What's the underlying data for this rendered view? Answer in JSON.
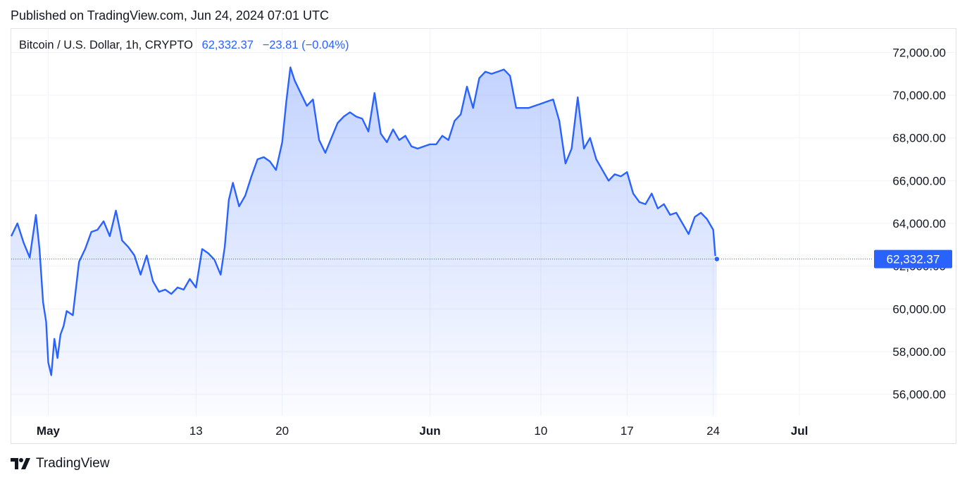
{
  "header": {
    "published": "Published on TradingView.com, Jun 24, 2024 07:01 UTC"
  },
  "legend": {
    "symbol": "Bitcoin / U.S. Dollar, 1h, CRYPTO",
    "price": "62,332.37",
    "change": "−23.81 (−0.04%)"
  },
  "footer": {
    "brand": "TradingView",
    "logo_icon": "tradingview-logo-icon"
  },
  "colors": {
    "line": "#2962ff",
    "label_bg": "#2962ff",
    "grid": "#f0f3fa",
    "text": "#131722"
  },
  "chart_data": {
    "type": "area",
    "symbol": "Bitcoin / U.S. Dollar",
    "interval": "1h",
    "ylim": [
      55000,
      73100
    ],
    "xlim_days": [
      "2024-04-28",
      "2024-07-07"
    ],
    "y_ticks": [
      56000,
      58000,
      60000,
      62000,
      64000,
      66000,
      68000,
      70000,
      72000
    ],
    "y_tick_labels": [
      "56,000.00",
      "58,000.00",
      "60,000.00",
      "62,000.00",
      "64,000.00",
      "66,000.00",
      "68,000.00",
      "70,000.00",
      "72,000.00"
    ],
    "x_ticks": [
      {
        "date": "2024-05-01",
        "label": "May",
        "bold": true
      },
      {
        "date": "2024-05-13",
        "label": "13",
        "bold": false
      },
      {
        "date": "2024-05-20",
        "label": "20",
        "bold": false
      },
      {
        "date": "2024-06-01",
        "label": "Jun",
        "bold": true
      },
      {
        "date": "2024-06-10",
        "label": "10",
        "bold": false
      },
      {
        "date": "2024-06-17",
        "label": "17",
        "bold": false
      },
      {
        "date": "2024-06-24",
        "label": "24",
        "bold": false
      },
      {
        "date": "2024-07-01",
        "label": "Jul",
        "bold": true
      }
    ],
    "last_price": 62332.37,
    "last_price_label": "62,332.37",
    "grid": true,
    "series": [
      {
        "x": [
          "2024-04-28T00:00",
          "2024-04-28T12:00",
          "2024-04-29T00:00",
          "2024-04-29T12:00",
          "2024-04-30T00:00",
          "2024-04-30T07:00",
          "2024-04-30T14:00",
          "2024-04-30T20:00",
          "2024-05-01T00:00",
          "2024-05-01T06:00",
          "2024-05-01T12:00",
          "2024-05-01T18:00",
          "2024-05-02T00:00",
          "2024-05-02T06:00",
          "2024-05-02T12:00",
          "2024-05-02T18:00",
          "2024-05-03T00:00",
          "2024-05-03T12:00",
          "2024-05-04T00:00",
          "2024-05-04T12:00",
          "2024-05-05T00:00",
          "2024-05-05T12:00",
          "2024-05-06T00:00",
          "2024-05-06T12:00",
          "2024-05-07T00:00",
          "2024-05-07T12:00",
          "2024-05-08T00:00",
          "2024-05-08T12:00",
          "2024-05-09T00:00",
          "2024-05-09T12:00",
          "2024-05-10T00:00",
          "2024-05-10T12:00",
          "2024-05-11T00:00",
          "2024-05-11T12:00",
          "2024-05-12T00:00",
          "2024-05-12T12:00",
          "2024-05-13T00:00",
          "2024-05-13T12:00",
          "2024-05-14T00:00",
          "2024-05-14T12:00",
          "2024-05-15T00:00",
          "2024-05-15T08:00",
          "2024-05-15T16:00",
          "2024-05-16T00:00",
          "2024-05-16T12:00",
          "2024-05-17T00:00",
          "2024-05-17T12:00",
          "2024-05-18T00:00",
          "2024-05-18T12:00",
          "2024-05-19T00:00",
          "2024-05-19T12:00",
          "2024-05-20T00:00",
          "2024-05-20T08:00",
          "2024-05-20T16:00",
          "2024-05-21T00:00",
          "2024-05-21T12:00",
          "2024-05-22T00:00",
          "2024-05-22T12:00",
          "2024-05-23T00:00",
          "2024-05-23T12:00",
          "2024-05-24T00:00",
          "2024-05-24T12:00",
          "2024-05-25T00:00",
          "2024-05-25T12:00",
          "2024-05-26T00:00",
          "2024-05-26T12:00",
          "2024-05-27T00:00",
          "2024-05-27T12:00",
          "2024-05-28T00:00",
          "2024-05-28T12:00",
          "2024-05-29T00:00",
          "2024-05-29T12:00",
          "2024-05-30T00:00",
          "2024-05-30T12:00",
          "2024-05-31T00:00",
          "2024-05-31T12:00",
          "2024-06-01T00:00",
          "2024-06-01T12:00",
          "2024-06-02T00:00",
          "2024-06-02T12:00",
          "2024-06-03T00:00",
          "2024-06-03T12:00",
          "2024-06-04T00:00",
          "2024-06-04T12:00",
          "2024-06-05T00:00",
          "2024-06-05T12:00",
          "2024-06-06T00:00",
          "2024-06-06T12:00",
          "2024-06-07T00:00",
          "2024-06-07T12:00",
          "2024-06-08T00:00",
          "2024-06-08T12:00",
          "2024-06-09T00:00",
          "2024-06-09T12:00",
          "2024-06-10T00:00",
          "2024-06-10T12:00",
          "2024-06-11T00:00",
          "2024-06-11T12:00",
          "2024-06-12T00:00",
          "2024-06-12T12:00",
          "2024-06-13T00:00",
          "2024-06-13T12:00",
          "2024-06-14T00:00",
          "2024-06-14T12:00",
          "2024-06-15T00:00",
          "2024-06-15T12:00",
          "2024-06-16T00:00",
          "2024-06-16T12:00",
          "2024-06-17T00:00",
          "2024-06-17T12:00",
          "2024-06-18T00:00",
          "2024-06-18T12:00",
          "2024-06-19T00:00",
          "2024-06-19T12:00",
          "2024-06-20T00:00",
          "2024-06-20T12:00",
          "2024-06-21T00:00",
          "2024-06-21T12:00",
          "2024-06-22T00:00",
          "2024-06-22T12:00",
          "2024-06-23T00:00",
          "2024-06-23T12:00",
          "2024-06-24T00:00",
          "2024-06-24T04:00",
          "2024-06-24T07:00"
        ],
        "values": [
          63400,
          64000,
          63100,
          62400,
          64400,
          62800,
          60300,
          59400,
          57500,
          56900,
          58600,
          57700,
          58800,
          59200,
          59900,
          59800,
          59700,
          62200,
          62800,
          63600,
          63700,
          64100,
          63400,
          64600,
          63200,
          62900,
          62500,
          61600,
          62500,
          61300,
          60800,
          60900,
          60700,
          61000,
          60900,
          61400,
          61000,
          62800,
          62600,
          62300,
          61600,
          62900,
          65100,
          65900,
          64800,
          65300,
          66200,
          67000,
          67100,
          66900,
          66500,
          67800,
          69700,
          71300,
          70700,
          70100,
          69500,
          69800,
          67900,
          67300,
          68000,
          68700,
          69000,
          69200,
          69000,
          68900,
          68300,
          70100,
          68200,
          67800,
          68400,
          67900,
          68100,
          67600,
          67500,
          67600,
          67700,
          67700,
          68100,
          67900,
          68800,
          69100,
          70400,
          69400,
          70800,
          71100,
          71000,
          71100,
          71200,
          70900,
          69400,
          69400,
          69400,
          69500,
          69600,
          69700,
          69800,
          68800,
          66800,
          67500,
          69900,
          67500,
          68000,
          67000,
          66500,
          66000,
          66300,
          66200,
          66400,
          65400,
          65000,
          64900,
          65400,
          64700,
          64900,
          64400,
          64500,
          64000,
          63500,
          64300,
          64500,
          64200,
          63700,
          62500,
          62332.37
        ]
      }
    ]
  }
}
